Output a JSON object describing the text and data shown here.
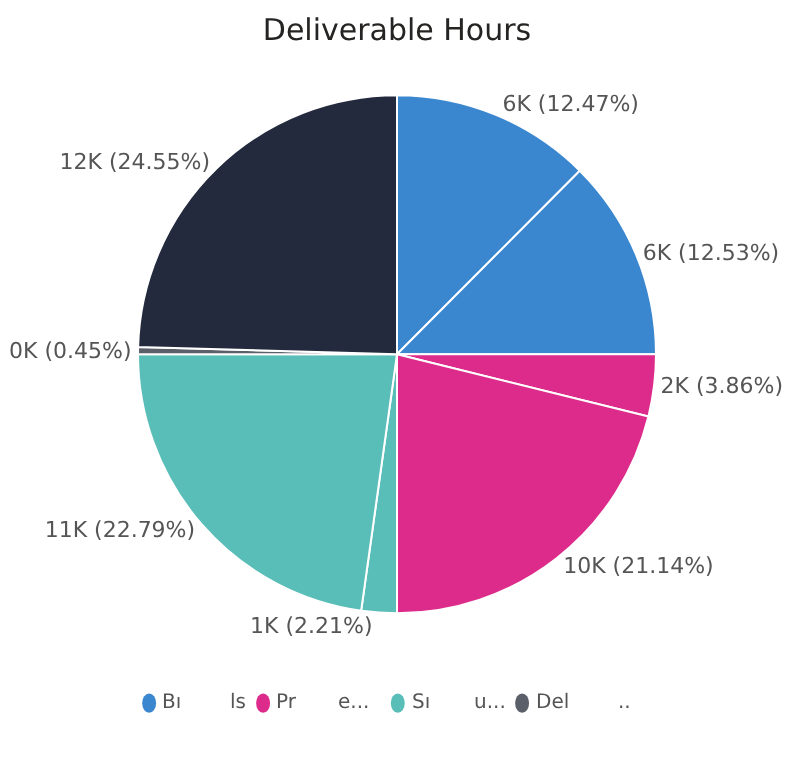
{
  "chart_data": {
    "type": "pie",
    "title": "Deliverable Hours",
    "categories": [
      null,
      null,
      null,
      null,
      null,
      null,
      null,
      null
    ],
    "values": [
      12.47,
      12.53,
      3.86,
      21.14,
      2.21,
      22.79,
      0.45,
      24.55
    ],
    "value_labels": [
      "6K (12.47%)",
      "6K (12.53%)",
      "2K (3.86%)",
      "10K (21.14%)",
      "1K (2.21%)",
      "11K (22.79%)",
      "0K (0.45%)",
      "12K (24.55%)"
    ],
    "colors": [
      "#3a87d0",
      "#3a87d0",
      "#dd2b8c",
      "#dd2b8c",
      "#59bdb8",
      "#59bdb8",
      "#5a5f6a",
      "#232a3d"
    ],
    "annotations": [
      "Bı",
      "ls",
      "Pr",
      "e...",
      "Sı",
      "u...",
      "Del",
      ".."
    ],
    "legend": false
  }
}
